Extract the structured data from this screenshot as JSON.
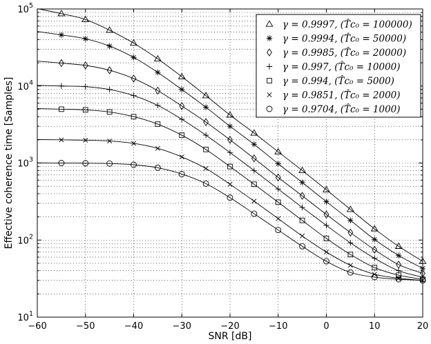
{
  "chart_data": {
    "type": "line",
    "xlabel": "SNR [dB]",
    "ylabel": "Effective coherence time [Samples]",
    "xlim": [
      -60,
      20
    ],
    "ylim": [
      10,
      100000
    ],
    "yscale": "log",
    "grid": true,
    "legend_position": "top-right",
    "x_ticks": [
      "-60",
      "-50",
      "-40",
      "-30",
      "-20",
      "-10",
      "0",
      "10",
      "20"
    ],
    "y_ticks": [
      {
        "base": "10",
        "exp": "1"
      },
      {
        "base": "10",
        "exp": "2"
      },
      {
        "base": "10",
        "exp": "3"
      },
      {
        "base": "10",
        "exp": "4"
      },
      {
        "base": "10",
        "exp": "5"
      }
    ],
    "marker_x": [
      -55,
      -50,
      -45,
      -40,
      -35,
      -30,
      -25,
      -20,
      -15,
      -10,
      -5,
      0,
      5,
      10,
      15,
      20
    ],
    "series": [
      {
        "name": "γ = 0.9997, (T̂c₀ = 100000)",
        "marker": "triangle",
        "values": [
          87000,
          73000,
          53000,
          36000,
          22500,
          13200,
          7500,
          4200,
          2450,
          1400,
          800,
          450,
          250,
          140,
          83,
          53
        ]
      },
      {
        "name": "γ = 0.9994, (T̂c₀ = 50000)",
        "marker": "star",
        "values": [
          46000,
          41000,
          33000,
          23500,
          15000,
          9000,
          5300,
          3000,
          1750,
          980,
          560,
          315,
          180,
          102,
          63,
          43
        ]
      },
      {
        "name": "γ = 0.9985, (T̂c₀ = 20000)",
        "marker": "diamond",
        "values": [
          19800,
          18500,
          16000,
          12500,
          8700,
          5500,
          3400,
          2000,
          1150,
          650,
          375,
          215,
          125,
          75,
          48,
          37
        ]
      },
      {
        "name": "γ = 0.997, (T̂c₀ = 10000)",
        "marker": "plus",
        "values": [
          10000,
          9800,
          9000,
          7500,
          5600,
          3700,
          2300,
          1370,
          800,
          460,
          265,
          155,
          92,
          58,
          40,
          33
        ]
      },
      {
        "name": "γ = 0.994, (T̂c₀ = 5000)",
        "marker": "square",
        "values": [
          5000,
          4900,
          4600,
          4000,
          3200,
          2300,
          1500,
          900,
          530,
          310,
          180,
          105,
          65,
          44,
          35,
          31
        ]
      },
      {
        "name": "γ = 0.9851, (T̂c₀ = 2000)",
        "marker": "x",
        "values": [
          2000,
          1980,
          1930,
          1800,
          1550,
          1200,
          850,
          530,
          320,
          190,
          113,
          70,
          47,
          36,
          32,
          30
        ]
      },
      {
        "name": "γ = 0.9704, (T̂c₀ = 1000)",
        "marker": "circle",
        "values": [
          1000,
          995,
          985,
          950,
          870,
          720,
          540,
          355,
          220,
          135,
          83,
          53,
          38,
          33,
          31,
          30
        ]
      }
    ]
  }
}
